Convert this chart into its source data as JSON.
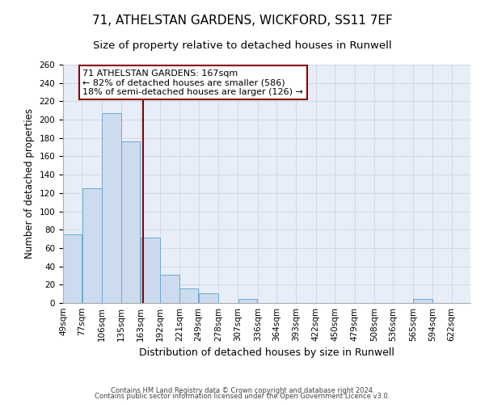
{
  "title": "71, ATHELSTAN GARDENS, WICKFORD, SS11 7EF",
  "subtitle": "Size of property relative to detached houses in Runwell",
  "xlabel": "Distribution of detached houses by size in Runwell",
  "ylabel": "Number of detached properties",
  "bin_labels": [
    "49sqm",
    "77sqm",
    "106sqm",
    "135sqm",
    "163sqm",
    "192sqm",
    "221sqm",
    "249sqm",
    "278sqm",
    "307sqm",
    "336sqm",
    "364sqm",
    "393sqm",
    "422sqm",
    "450sqm",
    "479sqm",
    "508sqm",
    "536sqm",
    "565sqm",
    "594sqm",
    "622sqm"
  ],
  "bin_edges": [
    49,
    77,
    106,
    135,
    163,
    192,
    221,
    249,
    278,
    307,
    336,
    364,
    393,
    422,
    450,
    479,
    508,
    536,
    565,
    594,
    622
  ],
  "bar_heights": [
    75,
    125,
    207,
    176,
    71,
    31,
    16,
    11,
    0,
    4,
    0,
    0,
    0,
    0,
    0,
    0,
    0,
    0,
    4,
    0,
    0
  ],
  "bar_color": "#ccdcee",
  "bar_edge_color": "#6aaad4",
  "property_size": 167,
  "vline_color": "#8b0000",
  "annotation_line1": "71 ATHELSTAN GARDENS: 167sqm",
  "annotation_line2": "← 82% of detached houses are smaller (586)",
  "annotation_line3": "18% of semi-detached houses are larger (126) →",
  "annotation_box_edgecolor": "#8b0000",
  "annotation_box_facecolor": "white",
  "ylim": [
    0,
    260
  ],
  "yticks": [
    0,
    20,
    40,
    60,
    80,
    100,
    120,
    140,
    160,
    180,
    200,
    220,
    240,
    260
  ],
  "grid_color": "#ccd6e8",
  "background_color": "#e8eef8",
  "footer_line1": "Contains HM Land Registry data © Crown copyright and database right 2024.",
  "footer_line2": "Contains public sector information licensed under the Open Government Licence v3.0.",
  "title_fontsize": 11,
  "subtitle_fontsize": 9.5,
  "xlabel_fontsize": 9,
  "ylabel_fontsize": 8.5,
  "annotation_fontsize": 8,
  "tick_fontsize": 7.5,
  "footer_fontsize": 6
}
